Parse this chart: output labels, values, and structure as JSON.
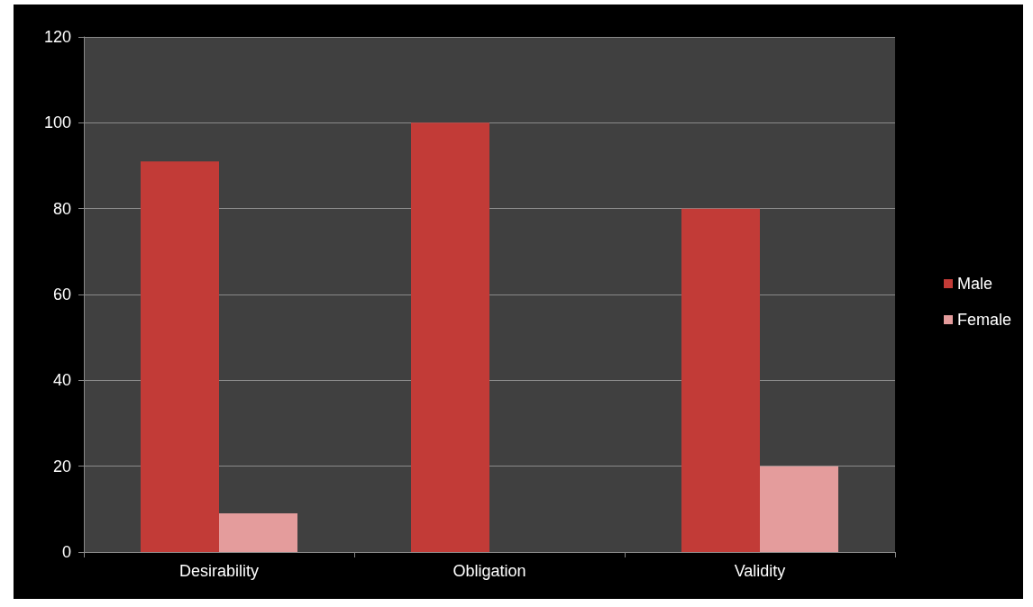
{
  "chart_data": {
    "type": "bar",
    "categories": [
      "Desirability",
      "Obligation",
      "Validity"
    ],
    "series": [
      {
        "name": "Male",
        "color": "#c23b37",
        "values": [
          91,
          100,
          80
        ]
      },
      {
        "name": "Female",
        "color": "#e49c9c",
        "values": [
          9,
          0,
          20
        ]
      }
    ],
    "ylim": [
      0,
      120
    ],
    "yticks": [
      0,
      20,
      40,
      60,
      80,
      100,
      120
    ],
    "grid": "y",
    "legend": "right"
  }
}
